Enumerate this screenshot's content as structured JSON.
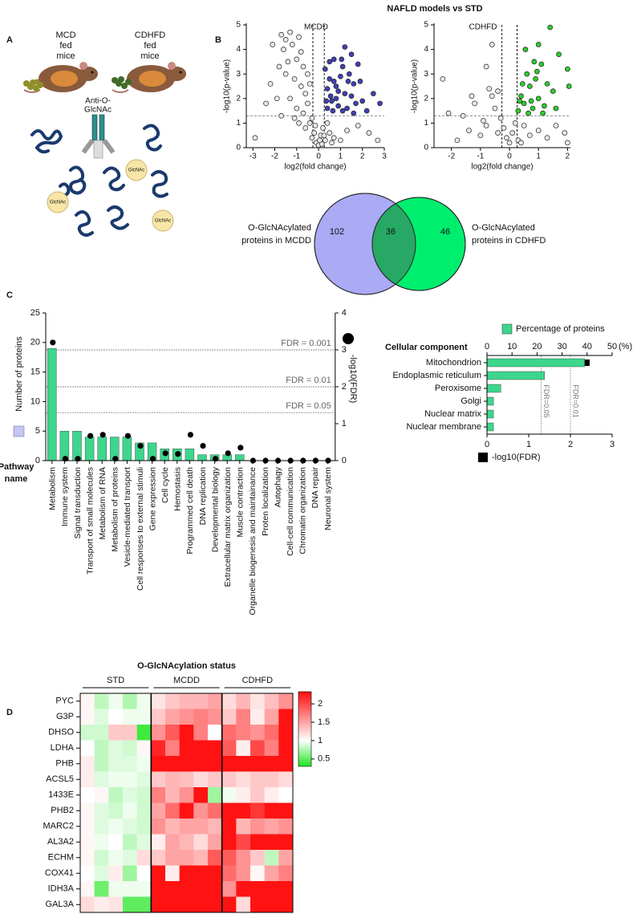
{
  "figure_title": "NAFLD models vs STD",
  "panel_labels": [
    "A",
    "B",
    "C",
    "D"
  ],
  "illustration": {
    "mouse_labels": [
      [
        "MCD",
        "fed",
        "mice"
      ],
      [
        "CDHFD",
        "fed",
        "mice"
      ]
    ],
    "antibody_label": [
      "Anti-O-",
      "GlcNAc"
    ],
    "sugar_labels": [
      "GlcNAc",
      "GlcNAc",
      "GlcNAc"
    ]
  },
  "chart_data": [
    {
      "type": "scatter",
      "title": "MCDD",
      "xlabel": "log2(fold change)",
      "ylabel": "-log10(p-value)",
      "xlim": [
        -3.3,
        3
      ],
      "xticks": [
        -3,
        -2,
        -1,
        0,
        1,
        2,
        3
      ],
      "ylim": [
        0,
        5
      ],
      "yticks": [
        0,
        1,
        2,
        3,
        4,
        5
      ],
      "thresholds_x": [
        -0.26,
        0.26
      ],
      "threshold_y": 1.3,
      "series": [
        {
          "color": "#e8e8e8",
          "x": [
            -1.7,
            -1.3,
            -1.5,
            -1.6,
            -2.1,
            -1.2,
            -0.9,
            -0.8,
            -1.0,
            -1.4,
            -1.8,
            -2.2,
            -1.9,
            -1.5,
            -0.7,
            -0.5,
            -1.1,
            -0.8,
            -0.6,
            -0.4,
            -1.3,
            -2.4,
            -2.9,
            -1.7,
            -1.0,
            -0.7,
            -0.5,
            -0.3,
            -0.2,
            -0.1,
            0.0,
            0.1,
            0.2,
            0.3,
            -0.3,
            -0.6,
            0.5,
            0.7,
            1.0,
            1.3,
            1.8,
            2.3,
            0.4,
            -0.9,
            2.7,
            0.15,
            -1.1,
            0.05,
            -0.15,
            0.25,
            -0.4,
            0.6
          ],
          "values": [
            4.6,
            4.7,
            4.4,
            4.0,
            4.2,
            4.2,
            4.5,
            3.9,
            3.6,
            3.5,
            3.3,
            2.6,
            2.0,
            3.0,
            3.3,
            3.0,
            2.8,
            2.5,
            2.2,
            2.6,
            2.0,
            1.8,
            0.4,
            1.3,
            1.6,
            1.4,
            1.8,
            1.2,
            0.6,
            0.2,
            0.1,
            0.5,
            0.8,
            0.3,
            0.4,
            0.8,
            0.6,
            0.4,
            0.3,
            0.7,
            0.9,
            0.6,
            1.0,
            1.0,
            0.3,
            0.15,
            1.2,
            0.3,
            0.9,
            0.5,
            1.0,
            0.2
          ]
        },
        {
          "color": "#3f3fb5",
          "x": [
            0.3,
            0.4,
            0.5,
            0.6,
            0.7,
            0.8,
            0.9,
            1.0,
            1.1,
            1.2,
            1.3,
            1.4,
            1.5,
            1.6,
            1.7,
            1.8,
            2.0,
            2.2,
            2.5,
            2.8,
            0.4,
            0.55,
            0.65,
            0.9,
            1.05,
            1.2,
            1.35,
            0.35,
            0.8,
            1.6,
            1.9,
            0.5,
            1.5,
            1.1,
            0.7
          ],
          "values": [
            3.2,
            2.4,
            2.8,
            1.9,
            3.6,
            2.5,
            1.7,
            2.9,
            3.3,
            2.2,
            1.6,
            3.0,
            2.1,
            2.6,
            1.8,
            3.4,
            1.9,
            1.5,
            2.2,
            1.8,
            1.6,
            2.1,
            1.5,
            2.3,
            3.6,
            4.1,
            2.7,
            1.9,
            2.0,
            1.4,
            2.7,
            3.5,
            3.8,
            1.5,
            2.7
          ]
        }
      ]
    },
    {
      "type": "scatter",
      "title": "CDHFD",
      "xlabel": "log2(fold change)",
      "ylabel": "-log10(p-value)",
      "xlim": [
        -2.6,
        2.1
      ],
      "xticks": [
        -2,
        -1,
        0,
        1,
        2
      ],
      "ylim": [
        0,
        5
      ],
      "yticks": [
        0,
        1,
        2,
        3,
        4,
        5
      ],
      "thresholds_x": [
        -0.26,
        0.26
      ],
      "threshold_y": 1.3,
      "series": [
        {
          "color": "#e8e8e8",
          "x": [
            -2.3,
            -2.1,
            -1.8,
            -1.6,
            -1.3,
            -1.2,
            -0.9,
            -0.8,
            -0.7,
            -0.6,
            -0.5,
            -0.4,
            -0.3,
            -0.2,
            -0.1,
            0.0,
            0.1,
            0.2,
            0.3,
            -0.4,
            -0.8,
            0.5,
            0.7,
            1.0,
            1.3,
            1.6,
            1.9,
            2.0,
            -1.0,
            -0.6,
            0.4,
            -1.4
          ],
          "values": [
            2.8,
            1.4,
            0.3,
            1.3,
            2.1,
            1.8,
            1.1,
            3.3,
            2.4,
            2.1,
            1.6,
            2.3,
            1.2,
            0.8,
            0.4,
            0.2,
            0.6,
            1.0,
            0.3,
            0.6,
            0.9,
            0.9,
            0.5,
            0.7,
            0.4,
            0.9,
            0.6,
            0.2,
            0.5,
            4.2,
            0.2,
            0.7
          ]
        },
        {
          "color": "#2ecc2e",
          "x": [
            0.3,
            0.4,
            0.5,
            0.6,
            0.7,
            0.8,
            0.9,
            1.0,
            1.1,
            1.2,
            1.4,
            1.5,
            1.7,
            2.0,
            2.05,
            0.45,
            0.65,
            0.85,
            1.3,
            0.55,
            1.0,
            0.75,
            1.15,
            0.35,
            0.95,
            1.6
          ],
          "values": [
            1.5,
            2.1,
            1.8,
            3.0,
            2.5,
            1.6,
            2.8,
            2.0,
            3.4,
            1.7,
            4.9,
            2.3,
            3.8,
            3.2,
            2.5,
            2.6,
            1.4,
            3.5,
            2.6,
            4.0,
            4.2,
            1.9,
            1.4,
            1.9,
            3.1,
            1.6
          ]
        }
      ]
    },
    {
      "type": "venn",
      "sets": [
        {
          "label": [
            "O-GlcNAcylated",
            "proteins in MCDD"
          ],
          "color": "#aaaaf5"
        },
        {
          "label": [
            "O-GlcNAcylated",
            "proteins in CDHFD"
          ],
          "color": "#00ee6e"
        }
      ],
      "overlap_color": "#27a865",
      "values": [
        102,
        36,
        46
      ]
    },
    {
      "type": "bar",
      "xlabel": [
        "Pathway",
        "name"
      ],
      "ylabel": "Number of proteins",
      "y2label": "-log10(FDR)",
      "categories": [
        "Metabolism",
        "Immune system",
        "Signal transduction",
        "Transport of small molecules",
        "Metabolism of RNA",
        "Metabolism of proteins",
        "Vesicle-mediated transport",
        "Cell responses to external stimuli",
        "Gene expression",
        "Cell cycle",
        "Hemostasis",
        "Programmed cell death",
        "DNA replication",
        "Developmental biology",
        "Extracellular matrix organization",
        "Muscle contraction",
        "Organelle biogenesis and maintainance",
        "Proten localization",
        "Autophagy",
        "Cell-cell communication",
        "Chromatin organization",
        "DNA repair",
        "Neuronal system"
      ],
      "ylim": [
        0,
        25
      ],
      "yticks": [
        0,
        5,
        10,
        15,
        20,
        25
      ],
      "y2lim": [
        0,
        4
      ],
      "y2ticks": [
        0,
        1,
        2,
        3,
        4
      ],
      "fdr_lines": [
        {
          "value": 3,
          "label": "FDR = 0.001"
        },
        {
          "value": 2,
          "label": "FDR = 0.01"
        },
        {
          "value": 1.3,
          "label": "FDR = 0.05"
        }
      ],
      "series": [
        {
          "color": "#3dd68c",
          "values": [
            19,
            5,
            5,
            4,
            4,
            4,
            4,
            3,
            3,
            2,
            2,
            2,
            1,
            1,
            1,
            1,
            0,
            0,
            0,
            0,
            0,
            0,
            0
          ]
        },
        {
          "color": "#000000",
          "axis": "y2",
          "values": [
            3.2,
            0.05,
            0.05,
            0.67,
            0.7,
            0.05,
            0.67,
            0.4,
            0.05,
            0.2,
            0.18,
            0.7,
            0.4,
            0.05,
            0.2,
            0.35,
            0,
            0,
            0,
            0,
            0,
            0,
            0
          ]
        }
      ]
    },
    {
      "type": "hbar",
      "title": "Cellular component",
      "categories": [
        "Mitochondrion",
        "Endoplasmic reticulum",
        "Peroxisome",
        "Golgi",
        "Nuclear matrix",
        "Nuclear membrane"
      ],
      "xlim": [
        0,
        50
      ],
      "xticks": [
        0,
        10,
        20,
        30,
        40,
        50
      ],
      "x_unit": "(%)",
      "x2lim": [
        0,
        3
      ],
      "x2ticks": [
        0,
        1,
        2,
        3
      ],
      "fdr_lines": [
        {
          "value": 1.3,
          "label": "FDR=0.05"
        },
        {
          "value": 2,
          "label": "FDR=0.01"
        }
      ],
      "series": [
        {
          "name": "Percentage of proteins",
          "color": "#3dd68c",
          "values": [
            39,
            23,
            5.5,
            2.6,
            2.6,
            2.6
          ]
        },
        {
          "name": "-log10(FDR)",
          "color": "#000000",
          "axis": "x2",
          "values": [
            2.46,
            null,
            null,
            null,
            null,
            null
          ]
        }
      ]
    },
    {
      "type": "heatmap",
      "title": "O-GlcNAcylation status",
      "groups": [
        "STD",
        "MCDD",
        "CDHFD"
      ],
      "rows": [
        "PYC",
        "G3P",
        "DHSO",
        "LDHA",
        "PHB",
        "ACSL5",
        "1433E",
        "PHB2",
        "MARC2",
        "AL3A2",
        "ECHM",
        "COX41",
        "IDH3A",
        "GAL3A"
      ],
      "zlim": [
        0.3,
        2.33
      ],
      "zmid": 1.0,
      "colors": [
        "#1ee61e",
        "#ffffff",
        "#ff0d0d"
      ],
      "zticks": [
        0.5,
        1.0,
        1.5,
        2.0
      ],
      "values": [
        [
          1.05,
          0.8,
          0.95,
          0.75,
          0.95,
          1.15,
          1.3,
          1.4,
          1.4,
          1.5,
          1.2,
          1.4,
          1.15,
          1.35,
          1.6
        ],
        [
          1.05,
          0.9,
          1.0,
          0.95,
          0.95,
          1.3,
          1.5,
          1.6,
          1.7,
          1.6,
          1.3,
          1.7,
          1.1,
          1.5,
          2.3
        ],
        [
          0.85,
          0.85,
          1.3,
          1.3,
          0.4,
          1.6,
          1.9,
          2.3,
          1.7,
          1.0,
          1.8,
          1.7,
          1.6,
          1.8,
          2.3
        ],
        [
          1.0,
          0.8,
          0.9,
          0.85,
          1.05,
          2.2,
          1.7,
          2.3,
          2.3,
          2.3,
          1.9,
          1.1,
          2.0,
          1.7,
          2.3
        ],
        [
          1.1,
          0.8,
          0.9,
          0.9,
          0.95,
          2.3,
          2.3,
          2.3,
          2.3,
          2.3,
          2.3,
          2.3,
          2.3,
          2.3,
          2.3
        ],
        [
          1.1,
          0.9,
          0.95,
          0.95,
          0.9,
          1.3,
          1.4,
          1.35,
          1.2,
          1.3,
          1.3,
          1.2,
          1.3,
          1.3,
          1.2
        ],
        [
          1.0,
          1.05,
          0.8,
          0.9,
          0.85,
          1.7,
          1.4,
          1.6,
          2.3,
          0.7,
          0.95,
          1.1,
          1.3,
          1.1,
          1.0
        ],
        [
          1.05,
          0.9,
          0.85,
          0.95,
          0.85,
          1.5,
          1.8,
          2.3,
          1.6,
          1.8,
          2.3,
          2.3,
          2.1,
          2.3,
          2.3
        ],
        [
          1.05,
          0.9,
          0.95,
          0.9,
          0.85,
          1.6,
          1.4,
          1.5,
          1.5,
          1.4,
          2.3,
          1.4,
          1.6,
          1.5,
          1.6
        ],
        [
          1.05,
          0.95,
          1.0,
          0.8,
          0.9,
          1.1,
          1.5,
          1.4,
          1.2,
          1.5,
          2.3,
          2.0,
          2.3,
          2.3,
          2.3
        ],
        [
          1.05,
          0.85,
          0.95,
          0.9,
          1.2,
          1.3,
          1.5,
          1.5,
          1.4,
          1.9,
          1.9,
          1.6,
          1.3,
          0.8,
          1.5
        ],
        [
          1.0,
          0.9,
          1.1,
          0.7,
          1.0,
          2.3,
          1.1,
          2.3,
          2.3,
          2.3,
          1.8,
          1.6,
          1.05,
          1.5,
          1.7
        ],
        [
          1.05,
          0.55,
          0.95,
          0.95,
          0.95,
          2.3,
          2.3,
          2.3,
          2.3,
          2.3,
          1.6,
          2.3,
          2.3,
          2.3,
          2.3
        ],
        [
          1.2,
          1.1,
          1.15,
          0.5,
          0.5,
          2.3,
          2.3,
          2.3,
          2.3,
          2.3,
          2.3,
          1.2,
          2.3,
          2.3,
          2.3
        ]
      ]
    }
  ]
}
